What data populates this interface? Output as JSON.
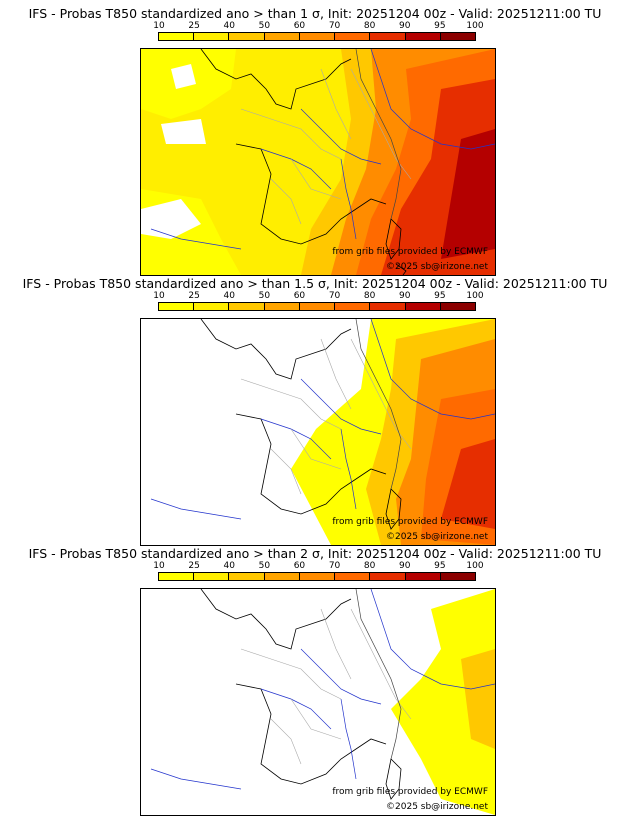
{
  "panels": [
    {
      "title": "IFS - Probas T850  standardized ano > than 1 σ, Init: 20251204 00z - Valid: 20251211:00 TU",
      "credit_source": "from grib files provided by ECMWF",
      "credit_copyright": "©2025 sb@irizone.net"
    },
    {
      "title": "IFS - Probas T850  standardized ano > than 1.5 σ, Init: 20251204 00z - Valid: 20251211:00 TU",
      "credit_source": "from grib files provided by ECMWF",
      "credit_copyright": "©2025 sb@irizone.net"
    },
    {
      "title": "IFS - Probas T850  standardized ano > than 2 σ, Init: 20251204 00z - Valid: 20251211:00 TU",
      "credit_source": "from grib files provided by ECMWF",
      "credit_copyright": "©2025 sb@irizone.net"
    }
  ],
  "legend": {
    "labels": [
      "10",
      "25",
      "40",
      "50",
      "60",
      "70",
      "80",
      "90",
      "95",
      "100"
    ],
    "colors": [
      "#ffff00",
      "#ffee00",
      "#ffc800",
      "#ffa500",
      "#ff8c00",
      "#ff6a00",
      "#e62e00",
      "#b40000",
      "#8b0000",
      "#650000"
    ]
  }
}
